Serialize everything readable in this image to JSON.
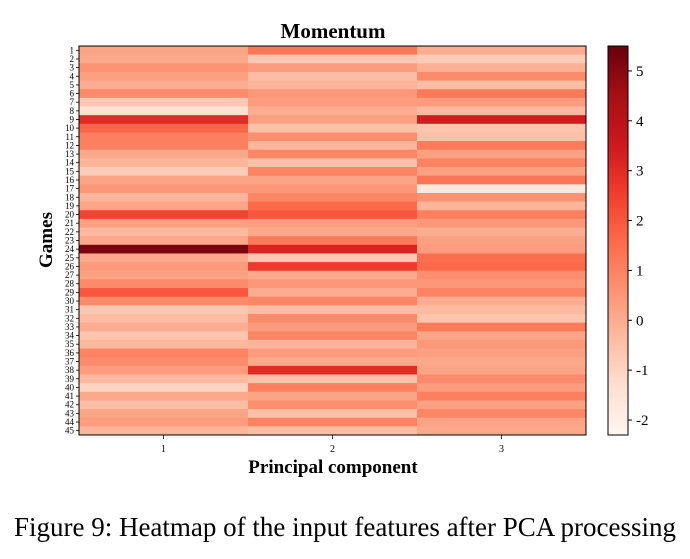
{
  "caption": "Figure 9: Heatmap of the input features after PCA processing",
  "chart_data": {
    "type": "heatmap",
    "title": "Momentum",
    "xlabel": "Principal component",
    "ylabel": "Games",
    "x_categories": [
      "1",
      "2",
      "3"
    ],
    "y_categories": [
      "1",
      "2",
      "3",
      "4",
      "5",
      "6",
      "7",
      "8",
      "9",
      "10",
      "11",
      "12",
      "13",
      "14",
      "15",
      "16",
      "17",
      "18",
      "19",
      "20",
      "21",
      "22",
      "23",
      "24",
      "25",
      "26",
      "27",
      "28",
      "29",
      "30",
      "31",
      "32",
      "33",
      "34",
      "35",
      "36",
      "37",
      "38",
      "39",
      "40",
      "41",
      "42",
      "43",
      "44",
      "45"
    ],
    "values": [
      [
        0.2,
        1.3,
        0.0
      ],
      [
        0.1,
        -0.7,
        -0.8
      ],
      [
        0.6,
        0.4,
        -0.1
      ],
      [
        0.3,
        -0.4,
        0.8
      ],
      [
        0.0,
        -0.2,
        -0.4
      ],
      [
        0.8,
        0.5,
        1.2
      ],
      [
        -0.7,
        0.4,
        0.4
      ],
      [
        -1.4,
        0.0,
        -0.3
      ],
      [
        3.0,
        0.3,
        3.4
      ],
      [
        1.7,
        -0.5,
        -0.6
      ],
      [
        1.1,
        0.7,
        -0.5
      ],
      [
        1.1,
        -0.2,
        1.2
      ],
      [
        0.1,
        0.9,
        0.3
      ],
      [
        -0.2,
        -0.5,
        1.0
      ],
      [
        -0.8,
        1.0,
        0.3
      ],
      [
        0.2,
        0.2,
        1.3
      ],
      [
        0.5,
        0.5,
        -1.7
      ],
      [
        -0.2,
        0.9,
        0.6
      ],
      [
        0.2,
        1.6,
        -0.2
      ],
      [
        2.4,
        2.0,
        1.1
      ],
      [
        0.3,
        0.3,
        0.5
      ],
      [
        -0.3,
        0.1,
        0.0
      ],
      [
        0.1,
        1.2,
        0.3
      ],
      [
        5.2,
        3.2,
        0.4
      ],
      [
        0.1,
        -0.7,
        1.5
      ],
      [
        0.4,
        2.6,
        1.6
      ],
      [
        0.3,
        0.1,
        0.7
      ],
      [
        0.8,
        0.5,
        0.5
      ],
      [
        2.0,
        0.0,
        1.0
      ],
      [
        0.8,
        0.9,
        0.0
      ],
      [
        -0.7,
        -0.4,
        -0.3
      ],
      [
        -0.4,
        0.8,
        -0.6
      ],
      [
        0.0,
        0.4,
        1.2
      ],
      [
        -0.6,
        0.9,
        0.2
      ],
      [
        -0.3,
        -0.2,
        0.5
      ],
      [
        1.0,
        0.4,
        0.3
      ],
      [
        0.8,
        0.1,
        0.1
      ],
      [
        0.4,
        3.0,
        0.2
      ],
      [
        -0.3,
        -0.5,
        0.8
      ],
      [
        -1.0,
        1.1,
        0.4
      ],
      [
        0.1,
        0.2,
        1.1
      ],
      [
        -0.4,
        0.7,
        0.3
      ],
      [
        0.2,
        -0.5,
        0.9
      ],
      [
        0.4,
        1.0,
        0.2
      ],
      [
        -0.2,
        -0.4,
        0.1
      ]
    ],
    "color_range": [
      -2.3,
      5.5
    ],
    "colormap": "Reds",
    "colorbar_ticks": [
      5,
      4,
      3,
      2,
      1,
      0,
      -1,
      -2
    ]
  }
}
